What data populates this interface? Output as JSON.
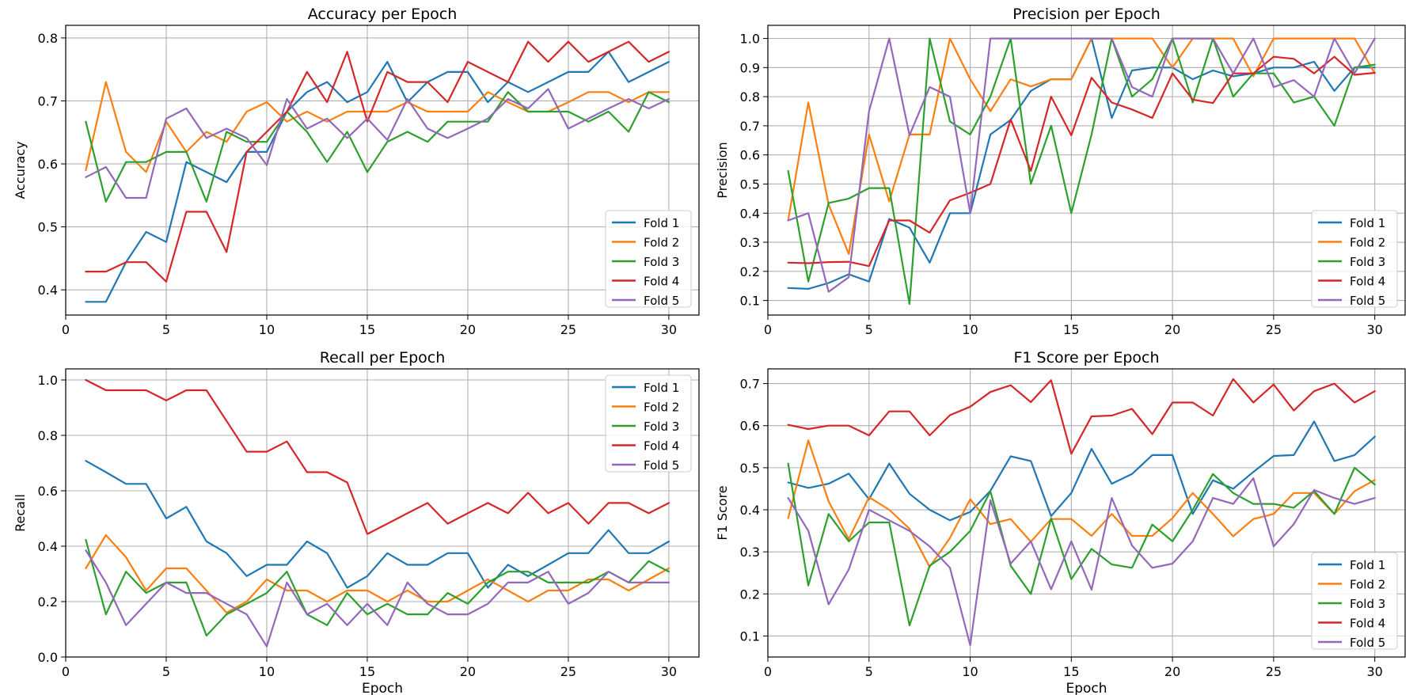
{
  "chart_data": [
    {
      "type": "line",
      "title": "Accuracy per Epoch",
      "xlabel": "",
      "ylabel": "Accuracy",
      "xlim": [
        0,
        31.5
      ],
      "ylim": [
        0.36,
        0.82
      ],
      "xticks": [
        0,
        5,
        10,
        15,
        20,
        25,
        30
      ],
      "yticks": [
        0.4,
        0.5,
        0.6,
        0.7,
        0.8
      ],
      "ytick_labels": [
        "0.4",
        "0.5",
        "0.6",
        "0.7",
        "0.8"
      ],
      "grid": true,
      "legend_position": "lower right",
      "x": [
        1,
        2,
        3,
        4,
        5,
        6,
        7,
        8,
        9,
        10,
        11,
        12,
        13,
        14,
        15,
        16,
        17,
        18,
        19,
        20,
        21,
        22,
        23,
        24,
        25,
        26,
        27,
        28,
        29,
        30
      ],
      "series": [
        {
          "name": "Fold 1",
          "color": "#1f77b4",
          "values": [
            0.381,
            0.381,
            0.444,
            0.492,
            0.476,
            0.603,
            0.587,
            0.571,
            0.619,
            0.619,
            0.683,
            0.714,
            0.73,
            0.698,
            0.714,
            0.762,
            0.698,
            0.73,
            0.746,
            0.746,
            0.698,
            0.73,
            0.714,
            0.73,
            0.746,
            0.746,
            0.778,
            0.73,
            0.746,
            0.762
          ]
        },
        {
          "name": "Fold 2",
          "color": "#ff7f0e",
          "values": [
            0.59,
            0.73,
            0.619,
            0.587,
            0.667,
            0.619,
            0.651,
            0.635,
            0.683,
            0.698,
            0.667,
            0.683,
            0.667,
            0.683,
            0.683,
            0.683,
            0.698,
            0.683,
            0.683,
            0.683,
            0.714,
            0.698,
            0.683,
            0.683,
            0.698,
            0.714,
            0.714,
            0.698,
            0.714,
            0.714
          ]
        },
        {
          "name": "Fold 3",
          "color": "#2ca02c",
          "values": [
            0.667,
            0.54,
            0.603,
            0.603,
            0.619,
            0.619,
            0.54,
            0.651,
            0.635,
            0.635,
            0.683,
            0.651,
            0.603,
            0.651,
            0.587,
            0.635,
            0.651,
            0.635,
            0.667,
            0.667,
            0.667,
            0.714,
            0.683,
            0.683,
            0.683,
            0.667,
            0.683,
            0.651,
            0.714,
            0.698
          ]
        },
        {
          "name": "Fold 4",
          "color": "#d62728",
          "values": [
            0.429,
            0.429,
            0.444,
            0.444,
            0.413,
            0.524,
            0.524,
            0.46,
            0.619,
            0.651,
            0.683,
            0.746,
            0.698,
            0.778,
            0.667,
            0.746,
            0.73,
            0.73,
            0.698,
            0.762,
            0.746,
            0.73,
            0.794,
            0.762,
            0.794,
            0.762,
            0.778,
            0.794,
            0.762,
            0.778
          ]
        },
        {
          "name": "Fold 5",
          "color": "#9467bd",
          "values": [
            0.579,
            0.595,
            0.546,
            0.546,
            0.672,
            0.688,
            0.641,
            0.656,
            0.641,
            0.598,
            0.703,
            0.656,
            0.672,
            0.641,
            0.672,
            0.638,
            0.703,
            0.656,
            0.641,
            0.656,
            0.672,
            0.703,
            0.688,
            0.719,
            0.656,
            0.672,
            0.688,
            0.703,
            0.688,
            0.703
          ]
        }
      ]
    },
    {
      "type": "line",
      "title": "Precision per Epoch",
      "xlabel": "",
      "ylabel": "Precision",
      "xlim": [
        0,
        31.5
      ],
      "ylim": [
        0.05,
        1.045
      ],
      "xticks": [
        0,
        5,
        10,
        15,
        20,
        25,
        30
      ],
      "yticks": [
        0.1,
        0.2,
        0.3,
        0.4,
        0.5,
        0.6,
        0.7,
        0.8,
        0.9,
        1.0
      ],
      "ytick_labels": [
        "0.1",
        "0.2",
        "0.3",
        "0.4",
        "0.5",
        "0.6",
        "0.7",
        "0.8",
        "0.9",
        "1.0"
      ],
      "grid": true,
      "legend_position": "lower right",
      "x": [
        1,
        2,
        3,
        4,
        5,
        6,
        7,
        8,
        9,
        10,
        11,
        12,
        13,
        14,
        15,
        16,
        17,
        18,
        19,
        20,
        21,
        22,
        23,
        24,
        25,
        26,
        27,
        28,
        29,
        30
      ],
      "series": [
        {
          "name": "Fold 1",
          "color": "#1f77b4",
          "values": [
            0.143,
            0.14,
            0.16,
            0.19,
            0.165,
            0.38,
            0.35,
            0.23,
            0.4,
            0.4,
            0.67,
            0.72,
            0.82,
            0.86,
            0.86,
            1.0,
            0.727,
            0.89,
            0.9,
            0.9,
            0.86,
            0.89,
            0.87,
            0.88,
            0.9,
            0.9,
            0.92,
            0.82,
            0.9,
            0.9
          ]
        },
        {
          "name": "Fold 2",
          "color": "#ff7f0e",
          "values": [
            0.375,
            0.78,
            0.43,
            0.26,
            0.67,
            0.44,
            0.67,
            0.67,
            1.0,
            0.86,
            0.75,
            0.86,
            0.835,
            0.86,
            0.86,
            1.0,
            1.0,
            1.0,
            1.0,
            0.9,
            1.0,
            1.0,
            1.0,
            0.87,
            1.0,
            1.0,
            1.0,
            1.0,
            1.0,
            0.88
          ]
        },
        {
          "name": "Fold 3",
          "color": "#2ca02c",
          "values": [
            0.545,
            0.165,
            0.435,
            0.45,
            0.486,
            0.486,
            0.088,
            1.0,
            0.715,
            0.67,
            0.8,
            1.0,
            0.5,
            0.7,
            0.4,
            0.67,
            1.0,
            0.8,
            0.86,
            1.0,
            0.78,
            1.0,
            0.8,
            0.88,
            0.88,
            0.78,
            0.8,
            0.7,
            0.9,
            0.91
          ]
        },
        {
          "name": "Fold 4",
          "color": "#d62728",
          "values": [
            0.23,
            0.228,
            0.232,
            0.233,
            0.218,
            0.375,
            0.375,
            0.333,
            0.444,
            0.47,
            0.5,
            0.722,
            0.545,
            0.8,
            0.667,
            0.865,
            0.78,
            0.756,
            0.727,
            0.88,
            0.79,
            0.778,
            0.88,
            0.88,
            0.937,
            0.93,
            0.88,
            0.937,
            0.875,
            0.882
          ]
        },
        {
          "name": "Fold 5",
          "color": "#9467bd",
          "values": [
            0.375,
            0.4,
            0.13,
            0.18,
            0.75,
            1.0,
            0.667,
            0.833,
            0.8,
            0.4,
            1.0,
            1.0,
            1.0,
            1.0,
            1.0,
            1.0,
            1.0,
            0.833,
            0.8,
            1.0,
            1.0,
            1.0,
            0.88,
            1.0,
            0.833,
            0.857,
            0.8,
            1.0,
            0.88,
            1.0
          ]
        }
      ]
    },
    {
      "type": "line",
      "title": "Recall per Epoch",
      "xlabel": "Epoch",
      "ylabel": "Recall",
      "xlim": [
        0,
        31.5
      ],
      "ylim": [
        0.0,
        1.04
      ],
      "xticks": [
        0,
        5,
        10,
        15,
        20,
        25,
        30
      ],
      "yticks": [
        0.0,
        0.2,
        0.4,
        0.6,
        0.8,
        1.0
      ],
      "ytick_labels": [
        "0.0",
        "0.2",
        "0.4",
        "0.6",
        "0.8",
        "1.0"
      ],
      "grid": true,
      "legend_position": "upper right",
      "x": [
        1,
        2,
        3,
        4,
        5,
        6,
        7,
        8,
        9,
        10,
        11,
        12,
        13,
        14,
        15,
        16,
        17,
        18,
        19,
        20,
        21,
        22,
        23,
        24,
        25,
        26,
        27,
        28,
        29,
        30
      ],
      "series": [
        {
          "name": "Fold 1",
          "color": "#1f77b4",
          "values": [
            0.708,
            0.667,
            0.625,
            0.625,
            0.5,
            0.542,
            0.417,
            0.375,
            0.292,
            0.333,
            0.333,
            0.417,
            0.375,
            0.25,
            0.292,
            0.375,
            0.333,
            0.333,
            0.375,
            0.375,
            0.25,
            0.333,
            0.292,
            0.333,
            0.375,
            0.375,
            0.458,
            0.375,
            0.375,
            0.417
          ]
        },
        {
          "name": "Fold 2",
          "color": "#ff7f0e",
          "values": [
            0.32,
            0.44,
            0.36,
            0.24,
            0.32,
            0.32,
            0.24,
            0.16,
            0.2,
            0.28,
            0.24,
            0.24,
            0.2,
            0.24,
            0.24,
            0.2,
            0.24,
            0.2,
            0.2,
            0.24,
            0.28,
            0.24,
            0.2,
            0.24,
            0.24,
            0.28,
            0.28,
            0.24,
            0.28,
            0.32
          ]
        },
        {
          "name": "Fold 3",
          "color": "#2ca02c",
          "values": [
            0.423,
            0.154,
            0.308,
            0.231,
            0.269,
            0.269,
            0.077,
            0.154,
            0.192,
            0.231,
            0.308,
            0.154,
            0.115,
            0.231,
            0.154,
            0.192,
            0.154,
            0.154,
            0.231,
            0.192,
            0.269,
            0.308,
            0.308,
            0.269,
            0.269,
            0.269,
            0.308,
            0.269,
            0.346,
            0.308
          ]
        },
        {
          "name": "Fold 4",
          "color": "#d62728",
          "values": [
            1.0,
            0.963,
            0.963,
            0.963,
            0.926,
            0.963,
            0.963,
            0.852,
            0.741,
            0.741,
            0.778,
            0.667,
            0.667,
            0.63,
            0.444,
            0.481,
            0.519,
            0.556,
            0.481,
            0.519,
            0.556,
            0.519,
            0.593,
            0.519,
            0.556,
            0.481,
            0.556,
            0.556,
            0.519,
            0.556
          ]
        },
        {
          "name": "Fold 5",
          "color": "#9467bd",
          "values": [
            0.385,
            0.269,
            0.115,
            0.192,
            0.269,
            0.231,
            0.231,
            0.192,
            0.154,
            0.038,
            0.269,
            0.154,
            0.192,
            0.115,
            0.192,
            0.115,
            0.269,
            0.192,
            0.154,
            0.154,
            0.192,
            0.269,
            0.269,
            0.308,
            0.192,
            0.231,
            0.308,
            0.269,
            0.269,
            0.269
          ]
        }
      ]
    },
    {
      "type": "line",
      "title": "F1 Score per Epoch",
      "xlabel": "Epoch",
      "ylabel": "F1 Score",
      "xlim": [
        0,
        31.5
      ],
      "ylim": [
        0.05,
        0.735
      ],
      "xticks": [
        0,
        5,
        10,
        15,
        20,
        25,
        30
      ],
      "yticks": [
        0.1,
        0.2,
        0.3,
        0.4,
        0.5,
        0.6,
        0.7
      ],
      "ytick_labels": [
        "0.1",
        "0.2",
        "0.3",
        "0.4",
        "0.5",
        "0.6",
        "0.7"
      ],
      "grid": true,
      "legend_position": "lower right",
      "x": [
        1,
        2,
        3,
        4,
        5,
        6,
        7,
        8,
        9,
        10,
        11,
        12,
        13,
        14,
        15,
        16,
        17,
        18,
        19,
        20,
        21,
        22,
        23,
        24,
        25,
        26,
        27,
        28,
        29,
        30
      ],
      "series": [
        {
          "name": "Fold 1",
          "color": "#1f77b4",
          "values": [
            0.465,
            0.452,
            0.462,
            0.486,
            0.425,
            0.51,
            0.438,
            0.4,
            0.375,
            0.395,
            0.445,
            0.527,
            0.516,
            0.385,
            0.44,
            0.545,
            0.462,
            0.485,
            0.53,
            0.53,
            0.39,
            0.47,
            0.45,
            0.49,
            0.528,
            0.53,
            0.61,
            0.516,
            0.53,
            0.574
          ]
        },
        {
          "name": "Fold 2",
          "color": "#ff7f0e",
          "values": [
            0.38,
            0.565,
            0.42,
            0.33,
            0.43,
            0.4,
            0.355,
            0.264,
            0.333,
            0.425,
            0.366,
            0.378,
            0.324,
            0.378,
            0.378,
            0.338,
            0.39,
            0.338,
            0.338,
            0.38,
            0.44,
            0.39,
            0.337,
            0.378,
            0.39,
            0.44,
            0.44,
            0.39,
            0.444,
            0.471
          ]
        },
        {
          "name": "Fold 3",
          "color": "#2ca02c",
          "values": [
            0.51,
            0.22,
            0.39,
            0.325,
            0.37,
            0.37,
            0.125,
            0.267,
            0.3,
            0.35,
            0.444,
            0.267,
            0.2,
            0.38,
            0.235,
            0.307,
            0.27,
            0.262,
            0.365,
            0.325,
            0.4,
            0.485,
            0.44,
            0.414,
            0.414,
            0.405,
            0.445,
            0.39,
            0.5,
            0.46
          ]
        },
        {
          "name": "Fold 4",
          "color": "#d62728",
          "values": [
            0.602,
            0.592,
            0.6,
            0.6,
            0.577,
            0.634,
            0.634,
            0.577,
            0.625,
            0.645,
            0.68,
            0.696,
            0.656,
            0.708,
            0.533,
            0.622,
            0.624,
            0.64,
            0.58,
            0.655,
            0.655,
            0.624,
            0.711,
            0.655,
            0.698,
            0.636,
            0.682,
            0.7,
            0.655,
            0.682
          ]
        },
        {
          "name": "Fold 5",
          "color": "#9467bd",
          "values": [
            0.428,
            0.35,
            0.175,
            0.258,
            0.4,
            0.375,
            0.35,
            0.313,
            0.262,
            0.078,
            0.423,
            0.272,
            0.325,
            0.211,
            0.325,
            0.21,
            0.428,
            0.315,
            0.262,
            0.272,
            0.325,
            0.428,
            0.414,
            0.475,
            0.313,
            0.366,
            0.447,
            0.428,
            0.414,
            0.428
          ]
        }
      ]
    }
  ]
}
